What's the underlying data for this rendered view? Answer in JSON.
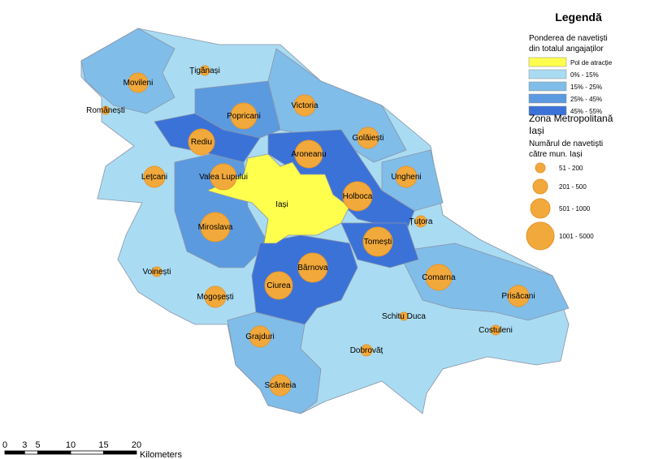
{
  "legend": {
    "title": "Legendă",
    "share_title": [
      "Ponderea de navetiști",
      "din totalul angajaților"
    ],
    "share_items": [
      {
        "label": "Pol de atracție",
        "color": "#ffff4d"
      },
      {
        "label": "0% - 15%",
        "color": "#a9dcf2"
      },
      {
        "label": "15% - 25%",
        "color": "#80bde9"
      },
      {
        "label": "25% - 45%",
        "color": "#5c9ae0"
      },
      {
        "label": "45% - 55%",
        "color": "#3b72d8"
      }
    ],
    "zone_title": [
      "Zona Metropolitană",
      "Iași"
    ],
    "count_title": [
      "Numărul de navetiști",
      "către mun. Iași"
    ],
    "count_items": [
      "51 - 200",
      "201 - 500",
      "501 - 1000",
      "1001 - 5000"
    ]
  },
  "map": {
    "places": [
      "Țigănași",
      "Movileni",
      "Românești",
      "Victoria",
      "Popricani",
      "Golăiești",
      "Rediu",
      "Aroneanu",
      "Lețcani",
      "Ungheni",
      "Valea Lupului",
      "Holboca",
      "Iași",
      "Țuțora",
      "Miroslava",
      "Tomești",
      "Bârnova",
      "Voinești",
      "Comarna",
      "Ciurea",
      "Mogoșești",
      "Prisăcani",
      "Schitu Duca",
      "Costuleni",
      "Grajduri",
      "Dobrovăț",
      "Scânteia"
    ]
  },
  "scale_bar": {
    "ticks": [
      0,
      3,
      5,
      10,
      15,
      20
    ],
    "unit": "Kilometers"
  }
}
